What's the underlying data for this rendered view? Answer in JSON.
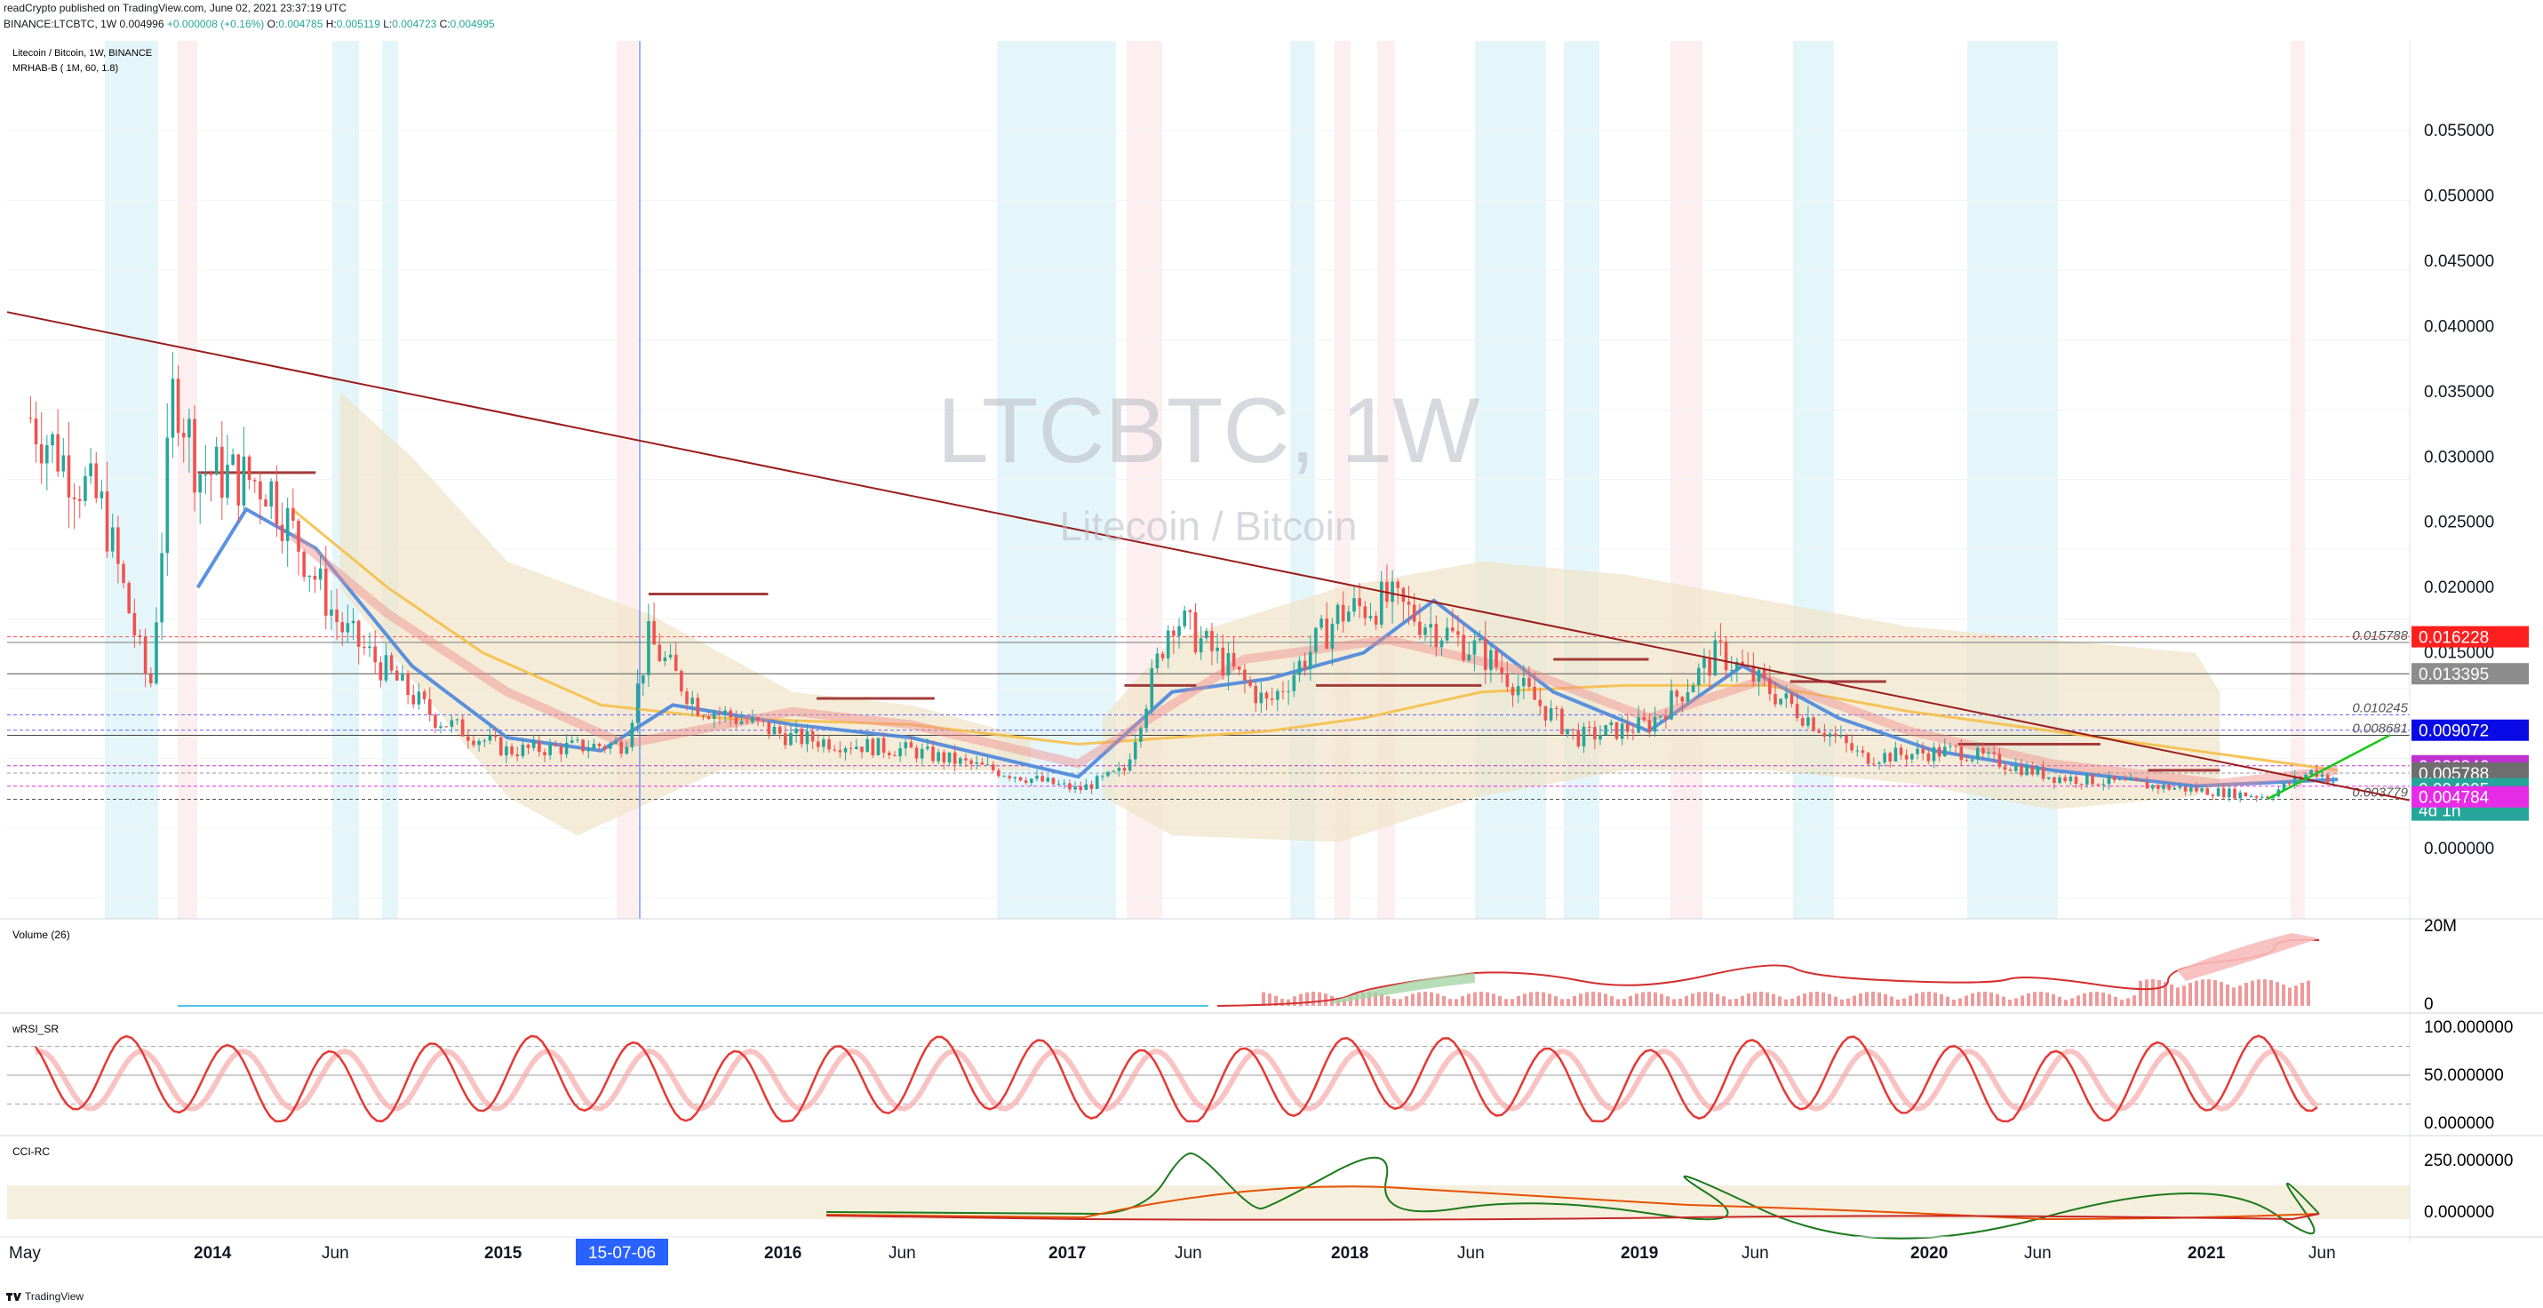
{
  "header": {
    "line1": "readCrypto published on TradingView.com, June 02, 2021 23:37:19 UTC",
    "symbol": "BINANCE:LTCBTC, 1W",
    "o_label": "O:",
    "o_val": "0.004996",
    "chg": "+0.000008 (+0.16%)",
    "h_label": "H:",
    "h_val": "0.005119",
    "l_label": "L:",
    "l_val": "0.004723",
    "c_label": "C:",
    "c_val": "0.004995",
    "o_val2": "0.004785"
  },
  "legend": {
    "title": "Litecoin / Bitcoin, 1W, BINANCE",
    "indicator": "MRHAB-B ( 1M, 60, 1.8)"
  },
  "watermark": {
    "symbol": "LTCBTC, 1W",
    "name": "Litecoin / Bitcoin"
  },
  "chart_data": [
    {
      "type": "candlestick",
      "title": "Litecoin / Bitcoin, 1W, BINANCE",
      "y_ticks": [
        "0.055000",
        "0.050000",
        "0.045000",
        "0.040000",
        "0.035000",
        "0.030000",
        "0.025000",
        "0.020000",
        "0.015000",
        "0.013395",
        "0.009072",
        "0.006346",
        "0.005788",
        "0.004784",
        "0.000000"
      ],
      "ylim": [
        0,
        0.058
      ],
      "x_ticks": [
        "May",
        "2014",
        "Jun",
        "2015",
        "15-07-06",
        "2016",
        "Jun",
        "2017",
        "Jun",
        "2018",
        "Jun",
        "2019",
        "Jun",
        "2020",
        "Jun",
        "2021",
        "Jun"
      ],
      "price_labels": [
        {
          "text": "0.016228",
          "color": "#ff1f1f"
        },
        {
          "text": "0.013395",
          "color": "#8c8c8c"
        },
        {
          "text": "0.009072",
          "color": "#0a0ae6"
        },
        {
          "text": "0.006346",
          "color": "#c030d0"
        },
        {
          "text": "0.005788",
          "color": "#6e6e6e"
        },
        {
          "text": "0.004995",
          "color": "#26a69a",
          "sub": "4d 1h"
        },
        {
          "text": "0.004784",
          "color": "#e62ce6"
        }
      ],
      "levels": [
        {
          "text": "0.015788",
          "value": 0.015788
        },
        {
          "text": "0.010245",
          "value": 0.010245
        },
        {
          "text": "0.008681",
          "value": 0.008681
        },
        {
          "text": "0.003779",
          "value": 0.003779
        }
      ],
      "series_approx_close": [
        {
          "t": "2013-05",
          "v": 0.033
        },
        {
          "t": "2013-08",
          "v": 0.026
        },
        {
          "t": "2013-10",
          "v": 0.012
        },
        {
          "t": "2013-11",
          "v": 0.036
        },
        {
          "t": "2013-12",
          "v": 0.029
        },
        {
          "t": "2014-03",
          "v": 0.028
        },
        {
          "t": "2014-06",
          "v": 0.017
        },
        {
          "t": "2014-10",
          "v": 0.01
        },
        {
          "t": "2015-01",
          "v": 0.0075
        },
        {
          "t": "2015-06",
          "v": 0.008
        },
        {
          "t": "2015-07",
          "v": 0.016
        },
        {
          "t": "2015-09",
          "v": 0.011
        },
        {
          "t": "2016-01",
          "v": 0.0085
        },
        {
          "t": "2016-06",
          "v": 0.0075
        },
        {
          "t": "2017-01",
          "v": 0.0045
        },
        {
          "t": "2017-03",
          "v": 0.006
        },
        {
          "t": "2017-05",
          "v": 0.018
        },
        {
          "t": "2017-09",
          "v": 0.011
        },
        {
          "t": "2017-12",
          "v": 0.018
        },
        {
          "t": "2018-02",
          "v": 0.019
        },
        {
          "t": "2018-06",
          "v": 0.015
        },
        {
          "t": "2018-10",
          "v": 0.0085
        },
        {
          "t": "2019-01",
          "v": 0.0095
        },
        {
          "t": "2019-04",
          "v": 0.015
        },
        {
          "t": "2019-07",
          "v": 0.011
        },
        {
          "t": "2019-10",
          "v": 0.007
        },
        {
          "t": "2020-02",
          "v": 0.0075
        },
        {
          "t": "2020-06",
          "v": 0.0055
        },
        {
          "t": "2020-12",
          "v": 0.0045
        },
        {
          "t": "2021-03",
          "v": 0.004
        },
        {
          "t": "2021-05",
          "v": 0.006
        },
        {
          "t": "2021-06",
          "v": 0.004995
        }
      ]
    },
    {
      "type": "bar",
      "title": "Volume (26)",
      "y_ticks": [
        "20M",
        "0"
      ]
    },
    {
      "type": "line",
      "title": "wRSI_SR",
      "y_ticks": [
        "100.000000",
        "50.000000",
        "0.000000"
      ]
    },
    {
      "type": "line",
      "title": "CCI-RC",
      "y_ticks": [
        "250.000000",
        "0.000000"
      ]
    }
  ],
  "footer": {
    "brand": "TradingView"
  }
}
